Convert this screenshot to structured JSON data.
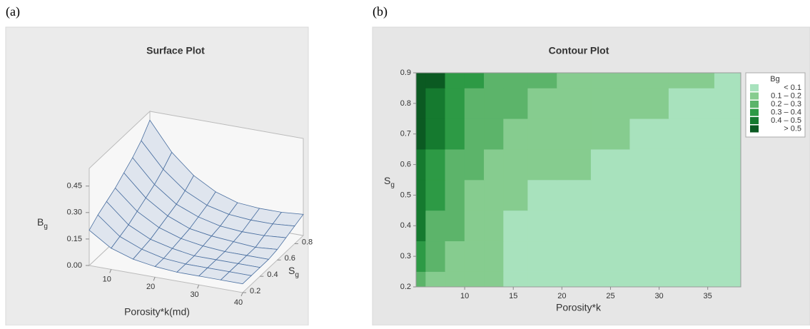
{
  "figure": {
    "panel_labels": [
      "(a)",
      "(b)"
    ]
  },
  "chart_data": [
    {
      "type": "surface",
      "title": "Surface Plot",
      "x_label": "Porosity*k(md)",
      "y_label": [
        "S",
        "g"
      ],
      "z_label": [
        "B",
        "g"
      ],
      "x": [
        5,
        10,
        15,
        20,
        25,
        30,
        35,
        40
      ],
      "y": [
        0.2,
        0.3,
        0.4,
        0.5,
        0.6,
        0.7,
        0.8,
        0.9
      ],
      "z": [
        [
          0.2,
          0.12,
          0.08,
          0.06,
          0.05,
          0.05,
          0.05,
          0.05
        ],
        [
          0.24,
          0.14,
          0.09,
          0.06,
          0.05,
          0.05,
          0.05,
          0.05
        ],
        [
          0.27,
          0.16,
          0.1,
          0.07,
          0.05,
          0.05,
          0.05,
          0.05
        ],
        [
          0.3,
          0.19,
          0.12,
          0.08,
          0.06,
          0.05,
          0.05,
          0.05
        ],
        [
          0.34,
          0.22,
          0.14,
          0.09,
          0.07,
          0.06,
          0.05,
          0.06
        ],
        [
          0.38,
          0.25,
          0.16,
          0.11,
          0.08,
          0.07,
          0.07,
          0.08
        ],
        [
          0.43,
          0.29,
          0.19,
          0.13,
          0.1,
          0.09,
          0.09,
          0.1
        ],
        [
          0.5,
          0.34,
          0.23,
          0.16,
          0.12,
          0.11,
          0.11,
          0.12
        ]
      ],
      "xlim": [
        5,
        40
      ],
      "ylim": [
        0.2,
        0.9
      ],
      "zlim": [
        0,
        0.55
      ],
      "xticks": [
        10,
        20,
        30,
        40
      ],
      "yticks": [
        0.2,
        0.4,
        0.6,
        0.8
      ],
      "zticks": [
        {
          "value": 0,
          "label": "0.00"
        },
        0.15,
        {
          "value": 0.3,
          "label": "0.30"
        },
        0.45
      ],
      "color": "#4a6fa0",
      "face_color": "#dfe5ee"
    },
    {
      "type": "contour",
      "title": "Contour Plot",
      "x_label": "Porosity*k",
      "y_label": [
        "S",
        "g"
      ],
      "x": [
        5,
        7,
        9,
        11,
        13,
        15,
        18,
        21,
        25,
        29,
        33,
        38.4
      ],
      "y": [
        0.2,
        0.3,
        0.4,
        0.5,
        0.6,
        0.7,
        0.8,
        0.9
      ],
      "z": [
        [
          0.22,
          0.17,
          0.15,
          0.12,
          0.1,
          0.09,
          0.08,
          0.07,
          0.06,
          0.06,
          0.05,
          0.05
        ],
        [
          0.3,
          0.2,
          0.17,
          0.13,
          0.1,
          0.09,
          0.08,
          0.07,
          0.06,
          0.06,
          0.05,
          0.05
        ],
        [
          0.4,
          0.28,
          0.2,
          0.15,
          0.11,
          0.09,
          0.08,
          0.07,
          0.06,
          0.06,
          0.05,
          0.05
        ],
        [
          0.42,
          0.32,
          0.22,
          0.17,
          0.14,
          0.11,
          0.09,
          0.08,
          0.07,
          0.06,
          0.06,
          0.05
        ],
        [
          0.45,
          0.36,
          0.28,
          0.21,
          0.17,
          0.14,
          0.12,
          0.1,
          0.09,
          0.08,
          0.07,
          0.06
        ],
        [
          0.51,
          0.42,
          0.33,
          0.26,
          0.21,
          0.18,
          0.15,
          0.13,
          0.11,
          0.09,
          0.08,
          0.06
        ],
        [
          0.53,
          0.45,
          0.36,
          0.29,
          0.24,
          0.2,
          0.17,
          0.15,
          0.13,
          0.11,
          0.09,
          0.07
        ],
        [
          0.55,
          0.5,
          0.38,
          0.33,
          0.27,
          0.24,
          0.2,
          0.17,
          0.15,
          0.12,
          0.1,
          0.08
        ]
      ],
      "xlim": [
        5,
        38.4
      ],
      "ylim": [
        0.2,
        0.9
      ],
      "xticks": [
        10,
        15,
        20,
        25,
        30,
        35
      ],
      "yticks": [
        0.2,
        0.3,
        0.4,
        0.5,
        0.6,
        0.7,
        0.8,
        0.9
      ],
      "legend": {
        "title": "Bg",
        "position": "right",
        "labels": [
          "< 0.1",
          "0.1 – 0.2",
          "0.2 – 0.3",
          "0.3 – 0.4",
          "0.4 – 0.5",
          "> 0.5"
        ],
        "breaks": [
          0.1,
          0.2,
          0.3,
          0.4,
          0.5
        ],
        "colors": [
          "#a8e2bd",
          "#86cc8f",
          "#5cb46a",
          "#2d9a45",
          "#157a2f",
          "#0b5a22"
        ]
      }
    }
  ]
}
